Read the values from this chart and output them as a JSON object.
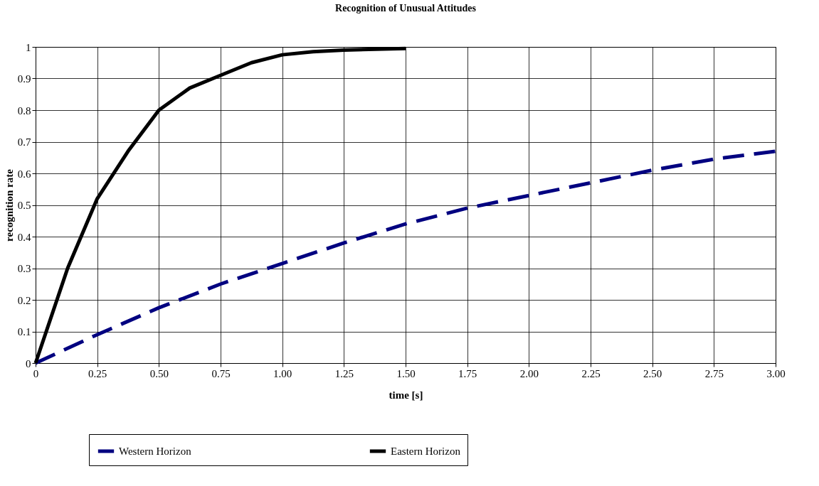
{
  "chart_data": {
    "type": "line",
    "title": "Recognition of Unusual Attitudes",
    "xlabel": "time [s]",
    "ylabel": "recognition rate",
    "xlim": [
      0,
      3
    ],
    "xticks": [
      0,
      0.25,
      {
        "value": 0.5,
        "label": "0.50"
      },
      0.75,
      {
        "value": 1,
        "label": "1.00"
      },
      1.25,
      {
        "value": 1.5,
        "label": "1.50"
      },
      1.75,
      {
        "value": 2,
        "label": "2.00"
      },
      2.25,
      {
        "value": 2.5,
        "label": "2.50"
      },
      2.75,
      {
        "value": 3,
        "label": "3.00"
      }
    ],
    "ylim": [
      0,
      1
    ],
    "yticks": [
      0,
      0.1,
      0.2,
      0.3,
      0.4,
      0.5,
      0.6,
      0.7,
      0.8,
      0.9,
      1
    ],
    "grid": true,
    "legend": "bottom",
    "marker": "none",
    "series": [
      {
        "name": "Western Horizon",
        "color": "#000080",
        "line_style": "dashed",
        "x": [
          0,
          0.25,
          0.5,
          0.75,
          1,
          1.25,
          1.5,
          1.75,
          2,
          2.25,
          2.5,
          2.75,
          3
        ],
        "values": [
          0,
          0.09,
          0.175,
          0.25,
          0.315,
          0.38,
          0.44,
          0.49,
          0.53,
          0.57,
          0.61,
          0.645,
          0.67
        ]
      },
      {
        "name": "Eastern Horizon",
        "color": "#000000",
        "line_style": "solid",
        "x": [
          0,
          0.13,
          0.25,
          0.375,
          0.5,
          0.625,
          0.75,
          0.875,
          1,
          1.125,
          1.25,
          1.5
        ],
        "values": [
          0,
          0.3,
          0.52,
          0.67,
          0.8,
          0.87,
          0.91,
          0.95,
          0.975,
          0.985,
          0.99,
          0.995
        ]
      }
    ]
  }
}
